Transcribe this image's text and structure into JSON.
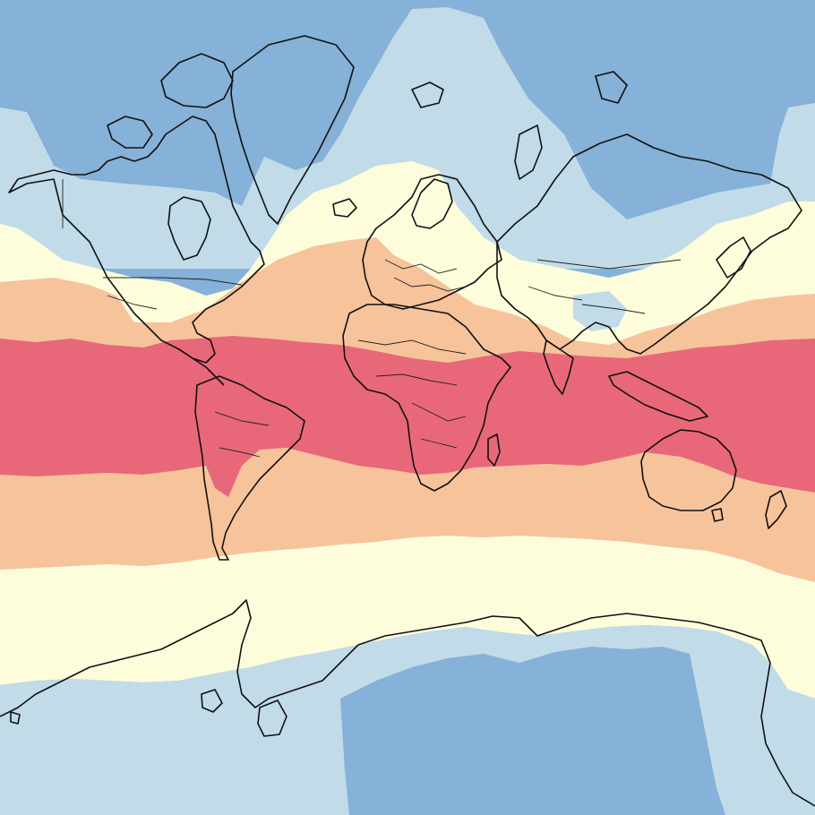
{
  "map": {
    "projection": "mercator",
    "palette": {
      "band_cold": "#86b1d8",
      "band_cool": "#c1dbe8",
      "band_mild": "#fdfddc",
      "band_warm": "#f7c39b",
      "band_hot": "#e8687a",
      "coastline": "#111111",
      "border": "#222222"
    },
    "bands": [
      {
        "name": "band_cold",
        "color": "#86b1d8"
      },
      {
        "name": "band_cool",
        "color": "#c1dbe8"
      },
      {
        "name": "band_mild",
        "color": "#fdfddc"
      },
      {
        "name": "band_warm",
        "color": "#f7c39b"
      },
      {
        "name": "band_hot",
        "color": "#e8687a"
      }
    ]
  }
}
